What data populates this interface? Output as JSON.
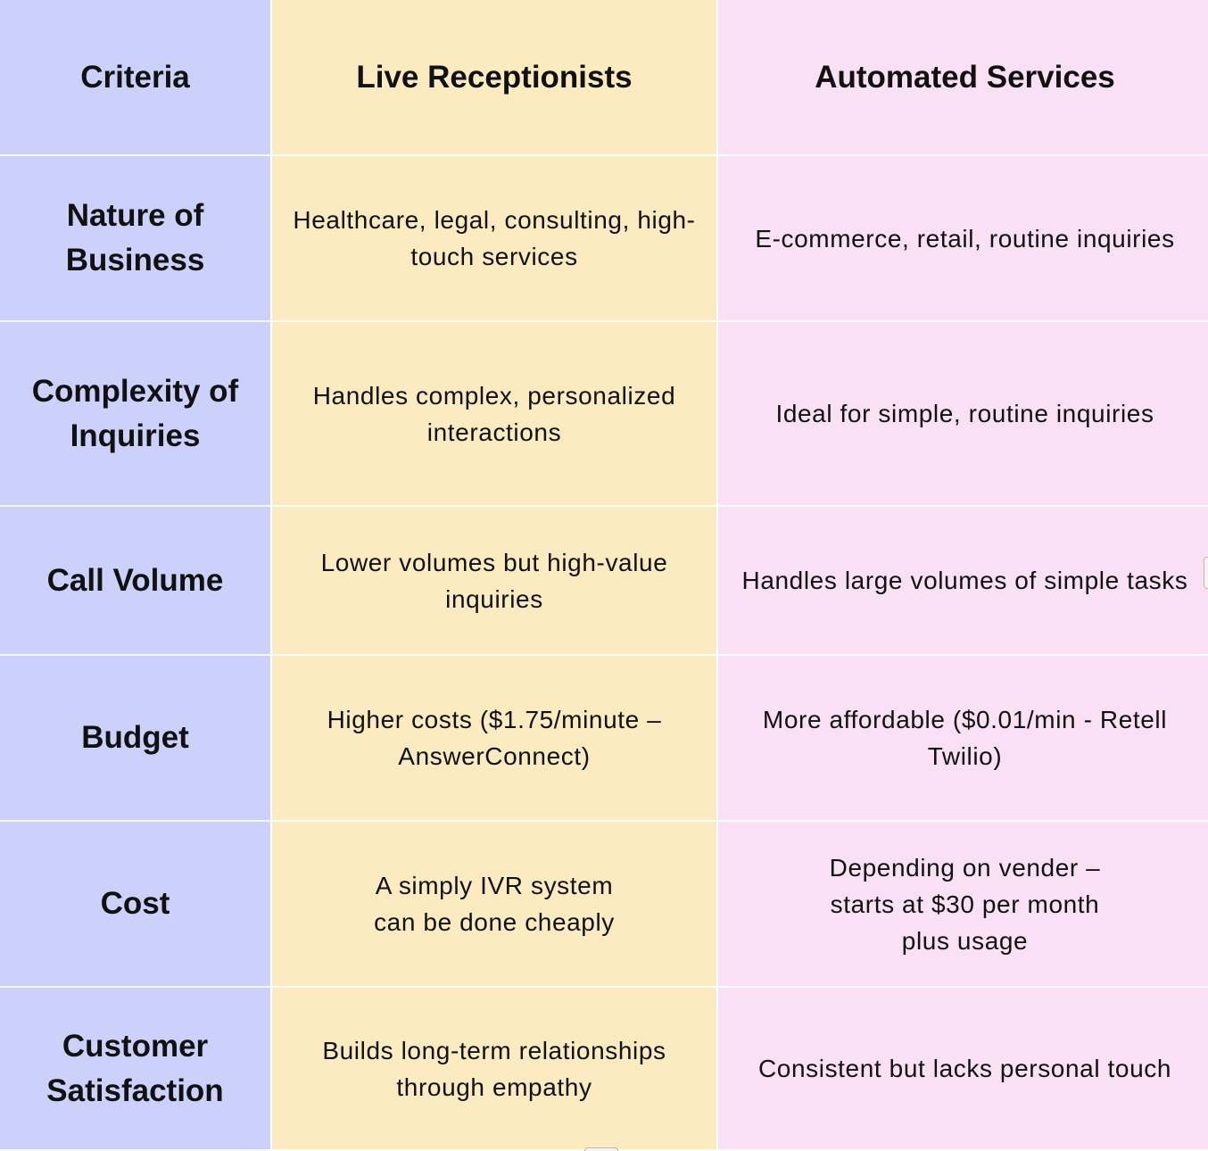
{
  "table": {
    "headers": [
      "Criteria",
      "Live Receptionists",
      "Automated Services"
    ],
    "rows": [
      {
        "criteria": "Nature of Business",
        "live": "Healthcare, legal, consulting, high-\ntouch services",
        "automated": "E-commerce, retail, routine inquiries"
      },
      {
        "criteria": "Complexity of Inquiries",
        "live": "Handles complex, personalized\ninteractions",
        "automated": "Ideal for simple, routine inquiries"
      },
      {
        "criteria": "Call Volume",
        "live": "Lower volumes but high-value\ninquiries",
        "automated": "Handles large volumes of simple tasks"
      },
      {
        "criteria": "Budget",
        "live": "Higher costs ($1.75/minute –\nAnswerConnect)",
        "automated": "More affordable ($0.01/min - Retell\nTwilio)"
      },
      {
        "criteria": "Cost",
        "live": "A simply IVR system\ncan be done cheaply",
        "automated": "Depending on vender –\nstarts at $30 per month\nplus usage"
      },
      {
        "criteria": "Customer Satisfaction",
        "live": "Builds long-term relationships\nthrough empathy",
        "automated": "Consistent but lacks personal touch"
      }
    ]
  },
  "colors": {
    "criteria_column": "#cbd1fb",
    "live_column": "#fcebc0",
    "automated_column": "#f9e0f4"
  }
}
